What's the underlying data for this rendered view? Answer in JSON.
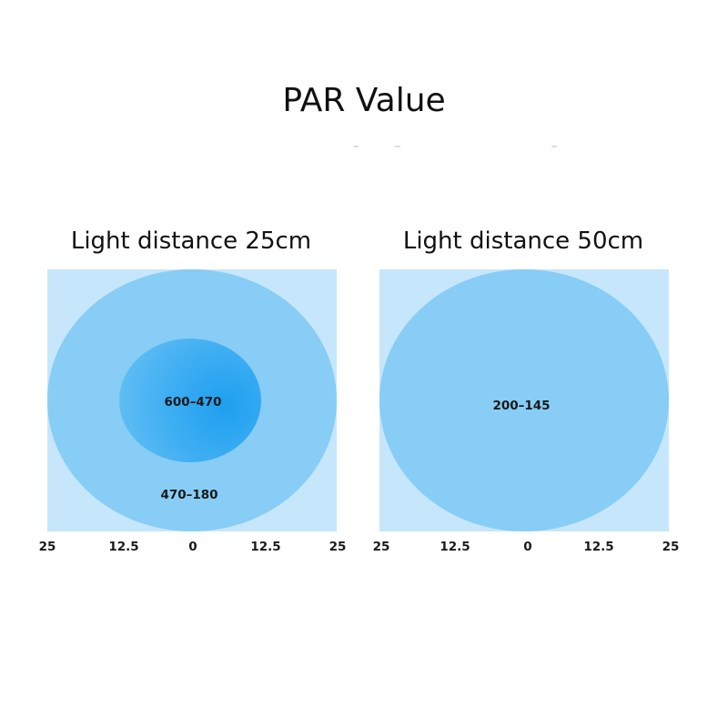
{
  "title": "PAR Value",
  "panels": [
    {
      "heading": "Light distance 25cm",
      "zones": {
        "inner": "600–470",
        "outer": "470–180"
      },
      "axis_ticks": [
        "25",
        "12.5",
        "0",
        "12.5",
        "25"
      ]
    },
    {
      "heading": "Light distance 50cm",
      "zones": {
        "outer": "200–145"
      },
      "axis_ticks": [
        "25",
        "12.5",
        "0",
        "12.5",
        "25"
      ]
    }
  ],
  "colors": {
    "background_square": "#c6e6fb",
    "outer_zone": "#87cdf5",
    "inner_zone": "#1e9ff0"
  }
}
